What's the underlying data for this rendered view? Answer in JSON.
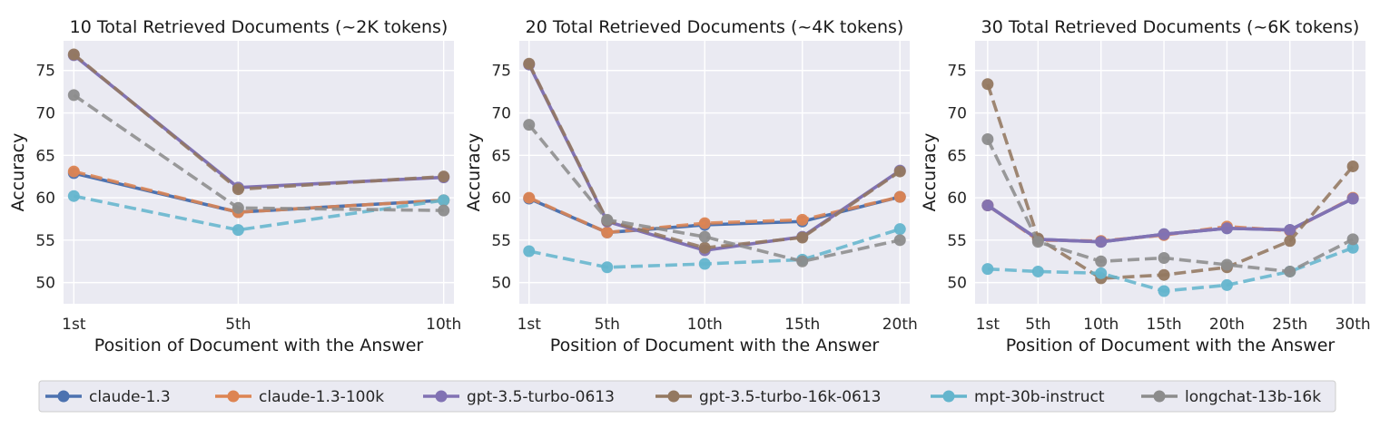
{
  "series_styles": [
    {
      "name": "claude-1.3",
      "color": "#4c72b0",
      "dashed": false
    },
    {
      "name": "claude-1.3-100k",
      "color": "#dd8452",
      "dashed": true
    },
    {
      "name": "gpt-3.5-turbo-0613",
      "color": "#8172b3",
      "dashed": false
    },
    {
      "name": "gpt-3.5-turbo-16k-0613",
      "color": "#937860",
      "dashed": true
    },
    {
      "name": "mpt-30b-instruct",
      "color": "#64b5cd",
      "dashed": true
    },
    {
      "name": "longchat-13b-16k",
      "color": "#8c8c8c",
      "dashed": true
    }
  ],
  "chart_data": [
    {
      "type": "line",
      "title": "10 Total Retrieved Documents (~2K tokens)",
      "xlabel": "Position of Document with the Answer",
      "ylabel": "Accuracy",
      "x": [
        1,
        5,
        10
      ],
      "x_tick_labels": [
        "1st",
        "5th",
        "10th"
      ],
      "xlim": [
        0.75,
        10.25
      ],
      "ylim": [
        47.5,
        78.5
      ],
      "y_ticks": [
        50,
        55,
        60,
        65,
        70,
        75
      ],
      "grid": true,
      "series": [
        {
          "name": "claude-1.3",
          "values": [
            62.9,
            58.3,
            59.7
          ]
        },
        {
          "name": "claude-1.3-100k",
          "values": [
            63.1,
            58.3,
            59.7
          ]
        },
        {
          "name": "gpt-3.5-turbo-0613",
          "values": [
            76.8,
            61.2,
            62.4
          ]
        },
        {
          "name": "gpt-3.5-turbo-16k-0613",
          "values": [
            76.9,
            61.0,
            62.5
          ]
        },
        {
          "name": "mpt-30b-instruct",
          "values": [
            60.2,
            56.2,
            59.7
          ]
        },
        {
          "name": "longchat-13b-16k",
          "values": [
            72.1,
            58.8,
            58.5
          ]
        }
      ]
    },
    {
      "type": "line",
      "title": "20 Total Retrieved Documents (~4K tokens)",
      "xlabel": "Position of Document with the Answer",
      "ylabel": "Accuracy",
      "x": [
        1,
        5,
        10,
        15,
        20
      ],
      "x_tick_labels": [
        "1st",
        "5th",
        "10th",
        "15th",
        "20th"
      ],
      "xlim": [
        0.5,
        20.5
      ],
      "ylim": [
        47.5,
        78.5
      ],
      "y_ticks": [
        50,
        55,
        60,
        65,
        70,
        75
      ],
      "grid": true,
      "series": [
        {
          "name": "claude-1.3",
          "values": [
            59.9,
            55.9,
            56.8,
            57.2,
            60.1
          ]
        },
        {
          "name": "claude-1.3-100k",
          "values": [
            60.0,
            55.9,
            57.0,
            57.4,
            60.1
          ]
        },
        {
          "name": "gpt-3.5-turbo-0613",
          "values": [
            75.7,
            57.2,
            53.8,
            55.4,
            63.2
          ]
        },
        {
          "name": "gpt-3.5-turbo-16k-0613",
          "values": [
            75.8,
            57.3,
            54.1,
            55.3,
            63.1
          ]
        },
        {
          "name": "mpt-30b-instruct",
          "values": [
            53.7,
            51.8,
            52.2,
            52.7,
            56.3
          ]
        },
        {
          "name": "longchat-13b-16k",
          "values": [
            68.6,
            57.4,
            55.4,
            52.5,
            55.0
          ]
        }
      ]
    },
    {
      "type": "line",
      "title": "30 Total Retrieved Documents (~6K tokens)",
      "xlabel": "Position of Document with the Answer",
      "ylabel": "Accuracy",
      "x": [
        1,
        5,
        10,
        15,
        20,
        25,
        30
      ],
      "x_tick_labels": [
        "1st",
        "5th",
        "10th",
        "15th",
        "20th",
        "25th",
        "30th"
      ],
      "xlim": [
        0,
        31
      ],
      "ylim": [
        47.5,
        78.5
      ],
      "y_ticks": [
        50,
        55,
        60,
        65,
        70,
        75
      ],
      "grid": true,
      "series": [
        {
          "name": "claude-1.3",
          "values": [
            59.1,
            55.1,
            54.8,
            55.7,
            56.4,
            56.2,
            59.9
          ]
        },
        {
          "name": "claude-1.3-100k",
          "values": [
            59.1,
            55.0,
            54.9,
            55.6,
            56.6,
            56.1,
            60.0
          ]
        },
        {
          "name": "gpt-3.5-turbo-0613",
          "values": [
            59.1,
            55.1,
            54.8,
            55.7,
            56.4,
            56.2,
            59.9
          ]
        },
        {
          "name": "gpt-3.5-turbo-16k-0613",
          "values": [
            73.4,
            55.2,
            50.5,
            50.9,
            51.8,
            54.9,
            63.7
          ]
        },
        {
          "name": "mpt-30b-instruct",
          "values": [
            51.6,
            51.3,
            51.1,
            49.0,
            49.7,
            51.3,
            54.1
          ]
        },
        {
          "name": "longchat-13b-16k",
          "values": [
            66.9,
            54.8,
            52.5,
            52.9,
            52.1,
            51.3,
            55.1
          ]
        }
      ]
    }
  ],
  "legend": {
    "placement": "bottom-center",
    "entries": [
      "claude-1.3",
      "claude-1.3-100k",
      "gpt-3.5-turbo-0613",
      "gpt-3.5-turbo-16k-0613",
      "mpt-30b-instruct",
      "longchat-13b-16k"
    ]
  }
}
